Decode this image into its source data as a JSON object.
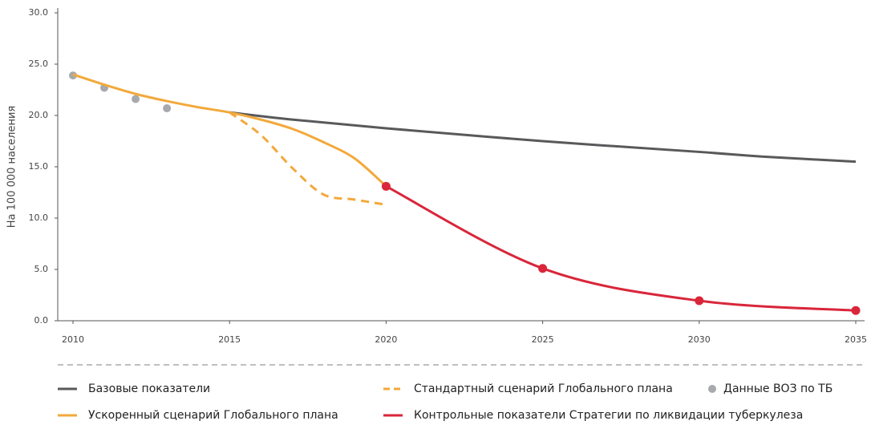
{
  "chart_data": {
    "type": "line",
    "ylabel": "На 100 000 населения",
    "xlim": [
      2010,
      2035
    ],
    "xticks": [
      2010,
      2015,
      2020,
      2025,
      2030,
      2035
    ],
    "ylim": [
      0,
      30
    ],
    "yticks": [
      {
        "value": 0,
        "label": "0.0"
      },
      {
        "value": 5,
        "label": "5.0"
      },
      {
        "value": 10,
        "label": "10.0"
      },
      {
        "value": 15,
        "label": "15.0"
      },
      {
        "value": 20,
        "label": "20.0"
      },
      {
        "value": 25,
        "label": "25.0"
      },
      {
        "value": 30,
        "label": "30.0"
      }
    ],
    "series": [
      {
        "name": "Базовые показатели",
        "color": "#58595b",
        "style": "solid",
        "x": [
          2015,
          2017,
          2020,
          2025,
          2030,
          2032,
          2035
        ],
        "values": [
          20.3,
          19.6,
          18.75,
          17.5,
          16.45,
          16.0,
          15.5
        ]
      },
      {
        "name": "Стандартный сценарий Глобального плана",
        "color": "#f2a93b",
        "style": "dashed",
        "x": [
          2015,
          2016,
          2017,
          2018,
          2019,
          2020
        ],
        "values": [
          20.3,
          18.1,
          14.9,
          12.3,
          11.8,
          11.3
        ]
      },
      {
        "name": "Данные ВОЗ по ТБ",
        "color": "#a7a9ac",
        "style": "dots",
        "x": [
          2010,
          2011,
          2012,
          2013
        ],
        "values": [
          23.9,
          22.7,
          21.6,
          20.7
        ]
      },
      {
        "name": "Ускоренный сценарий Глобального плана",
        "color": "#f2a93b",
        "style": "solid",
        "x": [
          2010,
          2011,
          2012,
          2013,
          2014,
          2015,
          2016,
          2017,
          2018,
          2019,
          2020
        ],
        "values": [
          24.0,
          23.0,
          22.1,
          21.4,
          20.8,
          20.3,
          19.6,
          18.7,
          17.4,
          15.8,
          13.1
        ]
      },
      {
        "name": "Контрольные показатели Стратегии по ликвидации туберкулеза",
        "color": "#d9263a",
        "style": "markers",
        "x": [
          2020,
          2025,
          2030,
          2035
        ],
        "values": [
          13.1,
          5.1,
          1.95,
          1.0
        ]
      }
    ]
  }
}
